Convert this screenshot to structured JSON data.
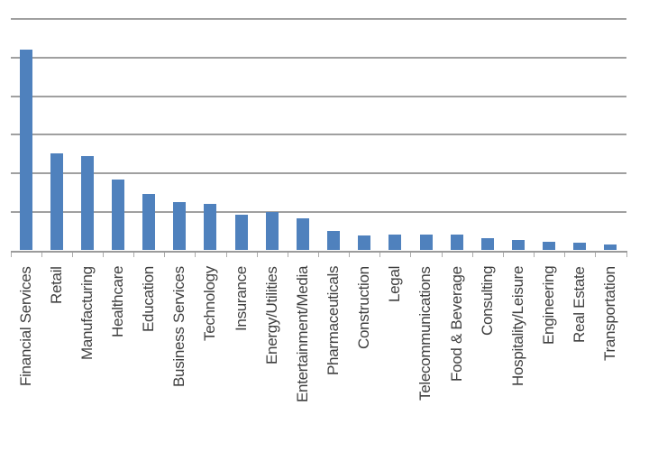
{
  "chart_data": {
    "type": "bar",
    "title": "",
    "xlabel": "",
    "ylabel": "",
    "categories": [
      "Financial Services",
      "Retail",
      "Manufacturing",
      "Healthcare",
      "Education",
      "Business Services",
      "Technology",
      "Insurance",
      "Energy/Utilities",
      "Entertainment/Media",
      "Pharmaceuticals",
      "Construction",
      "Legal",
      "Telecommunications",
      "Food & Beverage",
      "Consulting",
      "Hospitality/Leisure",
      "Engineering",
      "Real Estate",
      "Transportation"
    ],
    "values": [
      5.22,
      2.52,
      2.46,
      1.83,
      1.46,
      1.25,
      1.21,
      0.92,
      1.0,
      0.84,
      0.5,
      0.39,
      0.4,
      0.4,
      0.41,
      0.32,
      0.27,
      0.23,
      0.2,
      0.16
    ],
    "ylim": [
      0,
      6
    ],
    "gridline_interval": 1,
    "grid": true,
    "legend": false,
    "y_axis_tick_labels_visible": false,
    "colors": {
      "bar_fill": "#4F81BD",
      "gridline": "#A0A0A0",
      "axis_line": "#9B9B9B",
      "tick": "#ABABAB",
      "label_text": "#3F3F3F",
      "background": "#FFFFFF"
    }
  }
}
